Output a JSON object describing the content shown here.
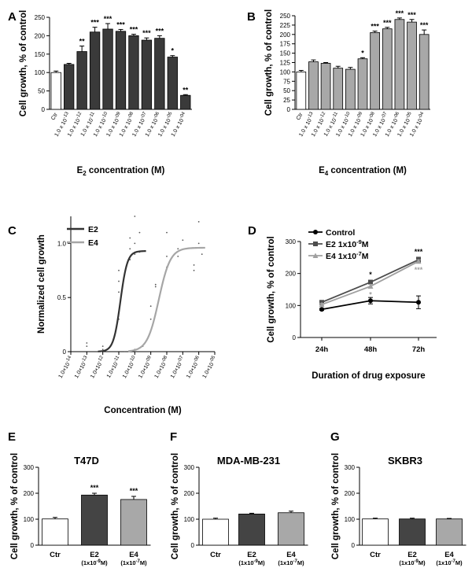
{
  "chart_data": [
    {
      "panel": "A",
      "type": "bar",
      "title": "",
      "ylabel": "Cell growth, % of control",
      "xlabel": "E2 concentration (M)",
      "xlabel_main": "E",
      "xlabel_sub": "2",
      "xlabel_rest": " concentration (M)",
      "ylim": [
        0,
        250
      ],
      "yticks": [
        0,
        50,
        100,
        150,
        200,
        250
      ],
      "categories": [
        "Ctr",
        "1.0 x 10-13",
        "1.0 x 10-12",
        "1.0 x 10-11",
        "1.0 x 10-10",
        "1.0 x 10-09",
        "1.0 x 10-08",
        "1.0 x 10-07",
        "1.0 x 10-06",
        "1.0 x 10-05",
        "1.0 x 10-04"
      ],
      "values": [
        100,
        122,
        157,
        210,
        218,
        212,
        200,
        188,
        193,
        142,
        38
      ],
      "errors": [
        4,
        3,
        15,
        13,
        15,
        5,
        4,
        6,
        7,
        4,
        2
      ],
      "fills": [
        "#ffffff",
        "#3a3a3a",
        "#3a3a3a",
        "#3a3a3a",
        "#3a3a3a",
        "#3a3a3a",
        "#3a3a3a",
        "#3a3a3a",
        "#3a3a3a",
        "#3a3a3a",
        "#3a3a3a"
      ],
      "significance": [
        "",
        "",
        "**",
        "***",
        "***",
        "***",
        "***",
        "***",
        "***",
        "*",
        "**"
      ]
    },
    {
      "panel": "B",
      "type": "bar",
      "title": "",
      "ylabel": "Cell growth, % of control",
      "xlabel": "E4 concentration (M)",
      "xlabel_main": "E",
      "xlabel_sub": "4",
      "xlabel_rest": " concentration (M)",
      "ylim": [
        0,
        250
      ],
      "yticks": [
        0,
        25,
        50,
        75,
        100,
        125,
        150,
        175,
        200,
        225,
        250
      ],
      "categories": [
        "Ctr",
        "1.0 x 10-13",
        "1.0 x 10-12",
        "1.0 x 10-11",
        "1.0 x 10-10",
        "1.0 x 10-09",
        "1.0 x 10-08",
        "1.0 x 10-07",
        "1.0 x 10-06",
        "1.0 x 10-05",
        "1.0 x 10-04"
      ],
      "values": [
        100,
        127,
        123,
        110,
        107,
        135,
        205,
        215,
        240,
        233,
        200
      ],
      "errors": [
        4,
        5,
        2,
        5,
        5,
        3,
        4,
        4,
        4,
        7,
        12
      ],
      "fills": [
        "#ffffff",
        "#a8a8a8",
        "#a8a8a8",
        "#a8a8a8",
        "#a8a8a8",
        "#a8a8a8",
        "#a8a8a8",
        "#a8a8a8",
        "#a8a8a8",
        "#a8a8a8",
        "#a8a8a8"
      ],
      "significance": [
        "",
        "",
        "",
        "",
        "",
        "*",
        "***",
        "***",
        "***",
        "***",
        "***"
      ]
    },
    {
      "panel": "C",
      "type": "line",
      "title": "",
      "ylabel": "Normalized cell growth",
      "xlabel": "Concentration (M)",
      "ylim": [
        0,
        1.25
      ],
      "yticks": [
        "0",
        "0.5",
        "1.0"
      ],
      "yticks_values": [
        0,
        0.5,
        1.0
      ],
      "xticks": [
        "1.0×10-14",
        "1.0×10-13",
        "1.0×10-12",
        "1.0×10-11",
        "1.0×10-10",
        "1.0×10-09",
        "1.0×10-08",
        "1.0×10-07",
        "1.0×10-06",
        "1.0×10-05"
      ],
      "xticks_log": [
        -14,
        -13,
        -12,
        -11,
        -10,
        -9,
        -8,
        -7,
        -6,
        -5
      ],
      "series": [
        {
          "name": "E2",
          "color": "#333333",
          "log_ec50": -10.9,
          "hill": 2.0,
          "top": 0.93,
          "x_range": [
            -12.3,
            -9.3
          ],
          "points": [
            [
              -13,
              0.05
            ],
            [
              -13,
              0.08
            ],
            [
              -12,
              0.02
            ],
            [
              -12,
              0.05
            ],
            [
              -11,
              0.3
            ],
            [
              -11,
              0.55
            ],
            [
              -11,
              0.65
            ],
            [
              -11,
              0.75
            ],
            [
              -10.3,
              0.85
            ],
            [
              -10.3,
              0.95
            ],
            [
              -10.3,
              1.05
            ],
            [
              -10,
              0.9
            ],
            [
              -10,
              1.0
            ],
            [
              -10,
              1.25
            ],
            [
              -9.7,
              1.1
            ],
            [
              -9.7,
              0.92
            ]
          ]
        },
        {
          "name": "E4",
          "color": "#a6a6a6",
          "log_ec50": -8.5,
          "hill": 1.2,
          "top": 0.96,
          "x_range": [
            -10.4,
            -5.6
          ],
          "points": [
            [
              -10.6,
              0.0
            ],
            [
              -10,
              0.02
            ],
            [
              -9.5,
              0.05
            ],
            [
              -9,
              0.3
            ],
            [
              -9,
              0.42
            ],
            [
              -8.7,
              0.6
            ],
            [
              -8.7,
              0.62
            ],
            [
              -8,
              0.78
            ],
            [
              -8,
              0.88
            ],
            [
              -8,
              1.1
            ],
            [
              -7.3,
              0.88
            ],
            [
              -7.3,
              0.95
            ],
            [
              -7,
              1.03
            ],
            [
              -6.3,
              0.75
            ],
            [
              -6.3,
              0.8
            ],
            [
              -6,
              1.0
            ],
            [
              -6,
              1.2
            ],
            [
              -5.8,
              0.9
            ]
          ]
        }
      ]
    },
    {
      "panel": "D",
      "type": "line",
      "title": "",
      "ylabel": "Cell growth, % of control",
      "xlabel": "Duration of drug exposure",
      "ylim": [
        0,
        300
      ],
      "yticks": [
        0,
        100,
        200,
        300
      ],
      "categories": [
        "24h",
        "48h",
        "72h"
      ],
      "series": [
        {
          "name": "Control",
          "name_main": "Control",
          "name_exp": "",
          "name_tail": "",
          "color": "#000000",
          "marker": "circle",
          "values": [
            88,
            115,
            110
          ],
          "errors": [
            3,
            10,
            20
          ]
        },
        {
          "name": "E2 1x10-9M",
          "name_main": "E2 1x10",
          "name_exp": "-9",
          "name_tail": "M",
          "color": "#4d4d4d",
          "marker": "square",
          "values": [
            110,
            173,
            243
          ],
          "errors": [
            4,
            6,
            8
          ]
        },
        {
          "name": "E4 1x10-7M",
          "name_main": "E4 1x10",
          "name_exp": "-7",
          "name_tail": "M",
          "color": "#a0a0a0",
          "marker": "triangle",
          "values": [
            103,
            160,
            238
          ],
          "errors": [
            4,
            6,
            5
          ]
        }
      ],
      "significance": [
        {
          "series": 1,
          "index": 1,
          "text": "*",
          "color": "#000000"
        },
        {
          "series": 2,
          "index": 1,
          "text": "*",
          "color": "#a0a0a0"
        },
        {
          "series": 1,
          "index": 2,
          "text": "***",
          "color": "#000000"
        },
        {
          "series": 2,
          "index": 2,
          "text": "***",
          "color": "#a0a0a0"
        }
      ]
    },
    {
      "panel": "E",
      "type": "bar",
      "title": "T47D",
      "ylabel": "Cell growth, % of control",
      "xlabel": "",
      "ylim": [
        0,
        300
      ],
      "yticks": [
        0,
        100,
        200,
        300
      ],
      "categories": [
        "Ctr",
        "E2",
        "E4"
      ],
      "category_subs": [
        [
          "",
          "",
          ""
        ],
        [
          "(1x10",
          "-9",
          "M)"
        ],
        [
          "(1x10",
          "-7",
          "M)"
        ]
      ],
      "values": [
        101,
        193,
        176
      ],
      "errors": [
        6,
        7,
        12
      ],
      "fills": [
        "#ffffff",
        "#444444",
        "#a8a8a8"
      ],
      "significance": [
        "",
        "***",
        "***"
      ]
    },
    {
      "panel": "F",
      "type": "bar",
      "title": "MDA-MB-231",
      "ylabel": "Cell growth, % of control",
      "xlabel": "",
      "ylim": [
        0,
        300
      ],
      "yticks": [
        0,
        100,
        200,
        300
      ],
      "categories": [
        "Ctr",
        "E2",
        "E4"
      ],
      "category_subs": [
        [
          "",
          "",
          ""
        ],
        [
          "(1x10",
          "-9",
          "M)"
        ],
        [
          "(1x10",
          "-7",
          "M)"
        ]
      ],
      "values": [
        100,
        120,
        125
      ],
      "errors": [
        4,
        3,
        6
      ],
      "fills": [
        "#ffffff",
        "#444444",
        "#a8a8a8"
      ],
      "significance": [
        "",
        "",
        ""
      ]
    },
    {
      "panel": "G",
      "type": "bar",
      "title": "SKBR3",
      "ylabel": "Cell growth, % of control",
      "xlabel": "",
      "ylim": [
        0,
        300
      ],
      "yticks": [
        0,
        100,
        200,
        300
      ],
      "categories": [
        "Ctr",
        "E2",
        "E4"
      ],
      "category_subs": [
        [
          "",
          "",
          ""
        ],
        [
          "(1x10",
          "-9",
          "M)"
        ],
        [
          "(1x10",
          "-7",
          "M)"
        ]
      ],
      "values": [
        101,
        101,
        101
      ],
      "errors": [
        3,
        3,
        2
      ],
      "fills": [
        "#ffffff",
        "#444444",
        "#a8a8a8"
      ],
      "significance": [
        "",
        "",
        ""
      ]
    }
  ]
}
